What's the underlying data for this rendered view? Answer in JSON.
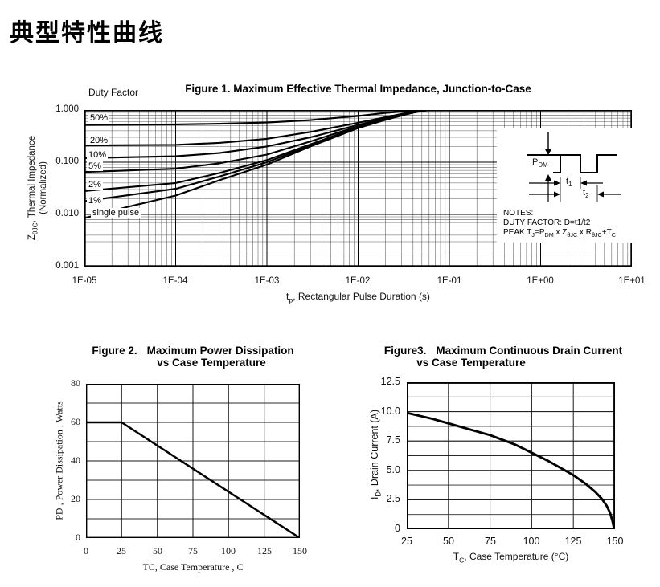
{
  "page_title": "典型特性曲线",
  "chart_data": [
    {
      "id": "fig1",
      "type": "line",
      "title": "Figure 1. Maximum Effective Thermal Impedance, Junction-to-Case",
      "duty_factor_label": "Duty Factor",
      "xlabel": "tp, Rectangular Pulse Duration (s)",
      "xlabel_parts": [
        "t",
        "_p",
        ", Rectangular Pulse Duration (s)"
      ],
      "ylabel": "ZθJC, Thermal Impedance (Normalized)",
      "ylabel_line1_parts": [
        "Z",
        "_θJC",
        ", Thermal Impedance"
      ],
      "ylabel_line2": "(Normalized)",
      "x_scale": "log",
      "y_scale": "log",
      "xlim": [
        1e-05,
        10
      ],
      "ylim": [
        0.001,
        1.0
      ],
      "x_tick_labels": [
        "1E-05",
        "1E-04",
        "1E-03",
        "1E-02",
        "1E-01",
        "1E+00",
        "1E+01"
      ],
      "y_tick_labels": [
        "1.000",
        "0.100",
        "0.010",
        "0.001"
      ],
      "grid": "log-log minor+major",
      "legend_position": "labels-on-curves-left",
      "series": [
        {
          "name": "50%",
          "points": [
            [
              1e-05,
              0.52
            ],
            [
              0.0001,
              0.53
            ],
            [
              0.0003,
              0.545
            ],
            [
              0.001,
              0.575
            ],
            [
              0.003,
              0.64
            ],
            [
              0.01,
              0.77
            ],
            [
              0.02,
              0.88
            ],
            [
              0.04,
              0.97
            ],
            [
              0.06,
              1.0
            ],
            [
              0.1,
              1.0
            ],
            [
              1,
              1.0
            ],
            [
              10,
              1.0
            ]
          ]
        },
        {
          "name": "20%",
          "points": [
            [
              1e-05,
              0.21
            ],
            [
              0.0001,
              0.215
            ],
            [
              0.0003,
              0.235
            ],
            [
              0.001,
              0.28
            ],
            [
              0.003,
              0.38
            ],
            [
              0.01,
              0.57
            ],
            [
              0.02,
              0.73
            ],
            [
              0.04,
              0.93
            ],
            [
              0.06,
              1.0
            ],
            [
              0.1,
              1.0
            ],
            [
              1,
              1.0
            ],
            [
              10,
              1.0
            ]
          ]
        },
        {
          "name": "10%",
          "points": [
            [
              1e-05,
              0.12
            ],
            [
              0.0001,
              0.13
            ],
            [
              0.0003,
              0.15
            ],
            [
              0.001,
              0.2
            ],
            [
              0.003,
              0.3
            ],
            [
              0.01,
              0.52
            ],
            [
              0.02,
              0.7
            ],
            [
              0.04,
              0.92
            ],
            [
              0.06,
              1.0
            ],
            [
              0.1,
              1.0
            ],
            [
              1,
              1.0
            ],
            [
              10,
              1.0
            ]
          ]
        },
        {
          "name": "5%",
          "points": [
            [
              1e-05,
              0.065
            ],
            [
              0.0001,
              0.075
            ],
            [
              0.0003,
              0.095
            ],
            [
              0.001,
              0.14
            ],
            [
              0.003,
              0.25
            ],
            [
              0.01,
              0.49
            ],
            [
              0.02,
              0.68
            ],
            [
              0.04,
              0.91
            ],
            [
              0.06,
              1.0
            ],
            [
              0.1,
              1.0
            ],
            [
              1,
              1.0
            ],
            [
              10,
              1.0
            ]
          ]
        },
        {
          "name": "2%",
          "points": [
            [
              1e-05,
              0.028
            ],
            [
              0.0001,
              0.04
            ],
            [
              0.0003,
              0.062
            ],
            [
              0.001,
              0.11
            ],
            [
              0.003,
              0.22
            ],
            [
              0.01,
              0.47
            ],
            [
              0.02,
              0.67
            ],
            [
              0.04,
              0.9
            ],
            [
              0.06,
              1.0
            ],
            [
              0.1,
              1.0
            ],
            [
              1,
              1.0
            ],
            [
              10,
              1.0
            ]
          ]
        },
        {
          "name": "1%",
          "points": [
            [
              1e-05,
              0.018
            ],
            [
              0.0001,
              0.031
            ],
            [
              0.0003,
              0.053
            ],
            [
              0.001,
              0.1
            ],
            [
              0.003,
              0.21
            ],
            [
              0.01,
              0.46
            ],
            [
              0.02,
              0.66
            ],
            [
              0.04,
              0.9
            ],
            [
              0.06,
              1.0
            ],
            [
              0.1,
              1.0
            ],
            [
              1,
              1.0
            ],
            [
              10,
              1.0
            ]
          ]
        },
        {
          "name": "single pulse",
          "points": [
            [
              1e-05,
              0.0085
            ],
            [
              3e-05,
              0.014
            ],
            [
              0.0001,
              0.023
            ],
            [
              0.0003,
              0.045
            ],
            [
              0.001,
              0.09
            ],
            [
              0.003,
              0.2
            ],
            [
              0.01,
              0.45
            ],
            [
              0.02,
              0.65
            ],
            [
              0.04,
              0.89
            ],
            [
              0.06,
              1.0
            ],
            [
              0.1,
              1.0
            ],
            [
              1,
              1.0
            ],
            [
              10,
              1.0
            ]
          ]
        }
      ],
      "inset": {
        "pdm_parts": [
          "P",
          "_DM"
        ],
        "t1_parts": [
          "t",
          "_1"
        ],
        "t2_parts": [
          "t",
          "_2"
        ],
        "notes_line1": "NOTES:",
        "notes_line2": "DUTY FACTOR: D=t1/t2",
        "notes_line3_parts": [
          "PEAK T",
          "_J",
          "=P",
          "_DM",
          " x Z",
          "_θJC",
          " x R",
          "_θJC",
          "+T",
          "_C"
        ]
      }
    },
    {
      "id": "fig2",
      "type": "line",
      "title": "Figure 2. Maximum Power Dissipation vs Case Temperature",
      "title_prefix": "Figure 2.",
      "title_main": "Maximum Power Dissipation",
      "title_line2": "vs Case Temperature",
      "xlabel": "TC, Case Temperature , C",
      "ylabel": "PD , Power Dissipation ,  Watts",
      "x_scale": "linear",
      "y_scale": "linear",
      "xlim": [
        0,
        150
      ],
      "ylim": [
        0,
        80
      ],
      "x_major": 25,
      "y_major": 20,
      "y_minor": 10,
      "x_tick_labels": [
        "0",
        "25",
        "50",
        "75",
        "100",
        "125",
        "150"
      ],
      "y_tick_labels": [
        "80",
        "60",
        "40",
        "20",
        "0"
      ],
      "grid": "on",
      "series": [
        {
          "name": "PD",
          "points": [
            [
              0,
              60
            ],
            [
              25,
              60
            ],
            [
              150,
              0
            ]
          ]
        }
      ]
    },
    {
      "id": "fig3",
      "type": "line",
      "title": "Figure3. Maximum Continuous Drain Current vs Case Temperature",
      "title_prefix": "Figure3.",
      "title_main": "Maximum Continuous Drain Current",
      "title_line2": "vs Case Temperature",
      "xlabel": "TC, Case Temperature (°C)",
      "xlabel_parts": [
        "T",
        "_C",
        ", Case Temperature (°C)"
      ],
      "ylabel": "ID, Drain Current (A)",
      "ylabel_parts": [
        "I",
        "_D",
        ", Drain Current (A)"
      ],
      "x_scale": "linear",
      "y_scale": "linear",
      "xlim": [
        25,
        150
      ],
      "ylim": [
        0,
        12.5
      ],
      "x_major": 25,
      "y_major": 2.5,
      "y_minor": 1.25,
      "x_tick_labels": [
        "25",
        "50",
        "75",
        "100",
        "125",
        "150"
      ],
      "y_tick_labels": [
        "12.5",
        "10.0",
        "7.5",
        "5.0",
        "2.5",
        "0"
      ],
      "grid": "on",
      "series": [
        {
          "name": "ID",
          "points": [
            [
              25,
              9.9
            ],
            [
              40,
              9.4
            ],
            [
              50,
              9.0
            ],
            [
              60,
              8.6
            ],
            [
              75,
              8.0
            ],
            [
              90,
              7.2
            ],
            [
              100,
              6.5
            ],
            [
              110,
              5.8
            ],
            [
              120,
              5.0
            ],
            [
              125,
              4.6
            ],
            [
              132,
              3.9
            ],
            [
              138,
              3.2
            ],
            [
              142,
              2.6
            ],
            [
              145,
              2.0
            ],
            [
              147,
              1.4
            ],
            [
              148.5,
              0.7
            ],
            [
              149.5,
              0
            ]
          ]
        }
      ]
    }
  ]
}
